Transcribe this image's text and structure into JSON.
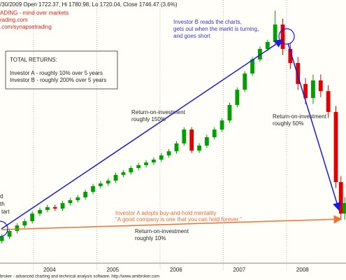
{
  "chart_data": {
    "type": "candlestick",
    "title": "/30/2009 Open 1722.37, Hi 1780.98, Lo 1720.04, Close 1746.47 (3.6%)",
    "brand_lines": [
      "ADING - mind over markets",
      "rading.com",
      ".com/synapsetrading"
    ],
    "returns_box": {
      "heading": "TOTAL RETURNS:",
      "lines": [
        "Investor A - roughly 10% over 5 years",
        "Investor B - roughly 200% over 5 years"
      ]
    },
    "investor_b_note": [
      "Investor B reads the charts,",
      "gets out when the markt is turning,",
      "and goes short"
    ],
    "roi_150": [
      "Return-on-investment",
      "roughly 150%"
    ],
    "roi_50": [
      "Return-on-investment",
      "roughly 50%"
    ],
    "roi_10": [
      "Return-on-investment",
      "roughly 10%"
    ],
    "left_cut_text": [
      "d",
      "th",
      "tart"
    ],
    "investor_a_note": [
      "Investor A adopts buy-and-hold mentality",
      "\"A good company is one that you can hold forever.\""
    ],
    "footer": "broker - advanced charting and technical analysis software. http://www.amibroker.com",
    "up_color": "#00a000",
    "down_color": "#e00000",
    "xlim": [
      2003.47,
      2008.94
    ],
    "xticks": [
      {
        "value": 2004,
        "label": "2004"
      },
      {
        "value": 2005,
        "label": "2005"
      },
      {
        "value": 2006,
        "label": "2006"
      },
      {
        "value": 2007,
        "label": "2007"
      },
      {
        "value": 2008,
        "label": "2008"
      }
    ],
    "ylim": [
      500,
      1600
    ],
    "x": [
      2003.5,
      2003.62,
      2003.74,
      2003.86,
      2003.98,
      2004.1,
      2004.22,
      2004.34,
      2004.46,
      2004.58,
      2004.7,
      2004.82,
      2004.94,
      2005.06,
      2005.18,
      2005.3,
      2005.42,
      2005.54,
      2005.66,
      2005.78,
      2005.9,
      2006.02,
      2006.14,
      2006.26,
      2006.38,
      2006.5,
      2006.62,
      2006.74,
      2006.86,
      2006.98,
      2007.1,
      2007.22,
      2007.34,
      2007.46,
      2007.58,
      2007.7,
      2007.82,
      2007.94,
      2008.06,
      2008.18,
      2008.3,
      2008.42,
      2008.54,
      2008.66,
      2008.78,
      2008.86,
      2008.92
    ],
    "open": [
      590,
      608,
      632,
      655,
      673,
      705,
      720,
      732,
      726,
      749,
      761,
      773,
      796,
      820,
      831,
      843,
      867,
      878,
      896,
      908,
      919,
      931,
      949,
      966,
      999,
      1057,
      969,
      990,
      1025,
      1057,
      1095,
      1160,
      1224,
      1292,
      1351,
      1395,
      1424,
      1497,
      1395,
      1336,
      1248,
      1189,
      1263,
      1218,
      1131,
      837,
      705
    ],
    "high": [
      618,
      642,
      665,
      683,
      715,
      730,
      742,
      742,
      759,
      771,
      783,
      806,
      830,
      841,
      853,
      877,
      888,
      906,
      918,
      929,
      941,
      959,
      976,
      1009,
      1067,
      1067,
      1000,
      1035,
      1067,
      1105,
      1170,
      1234,
      1302,
      1361,
      1405,
      1434,
      1556,
      1522,
      1420,
      1361,
      1273,
      1288,
      1288,
      1243,
      1156,
      862,
      774
    ],
    "low": [
      580,
      598,
      622,
      645,
      663,
      695,
      710,
      716,
      716,
      739,
      751,
      763,
      786,
      810,
      821,
      833,
      857,
      868,
      886,
      898,
      909,
      921,
      939,
      956,
      989,
      959,
      959,
      980,
      1015,
      1047,
      1085,
      1150,
      1214,
      1282,
      1341,
      1385,
      1414,
      1370,
      1311,
      1223,
      1164,
      1164,
      1193,
      1106,
      812,
      680,
      680
    ],
    "close": [
      608,
      632,
      655,
      673,
      705,
      720,
      732,
      726,
      749,
      761,
      773,
      796,
      820,
      831,
      843,
      867,
      878,
      896,
      908,
      919,
      931,
      949,
      966,
      999,
      1057,
      969,
      990,
      1025,
      1057,
      1095,
      1160,
      1224,
      1292,
      1351,
      1395,
      1424,
      1497,
      1395,
      1336,
      1248,
      1189,
      1263,
      1218,
      1131,
      837,
      705,
      749
    ]
  }
}
